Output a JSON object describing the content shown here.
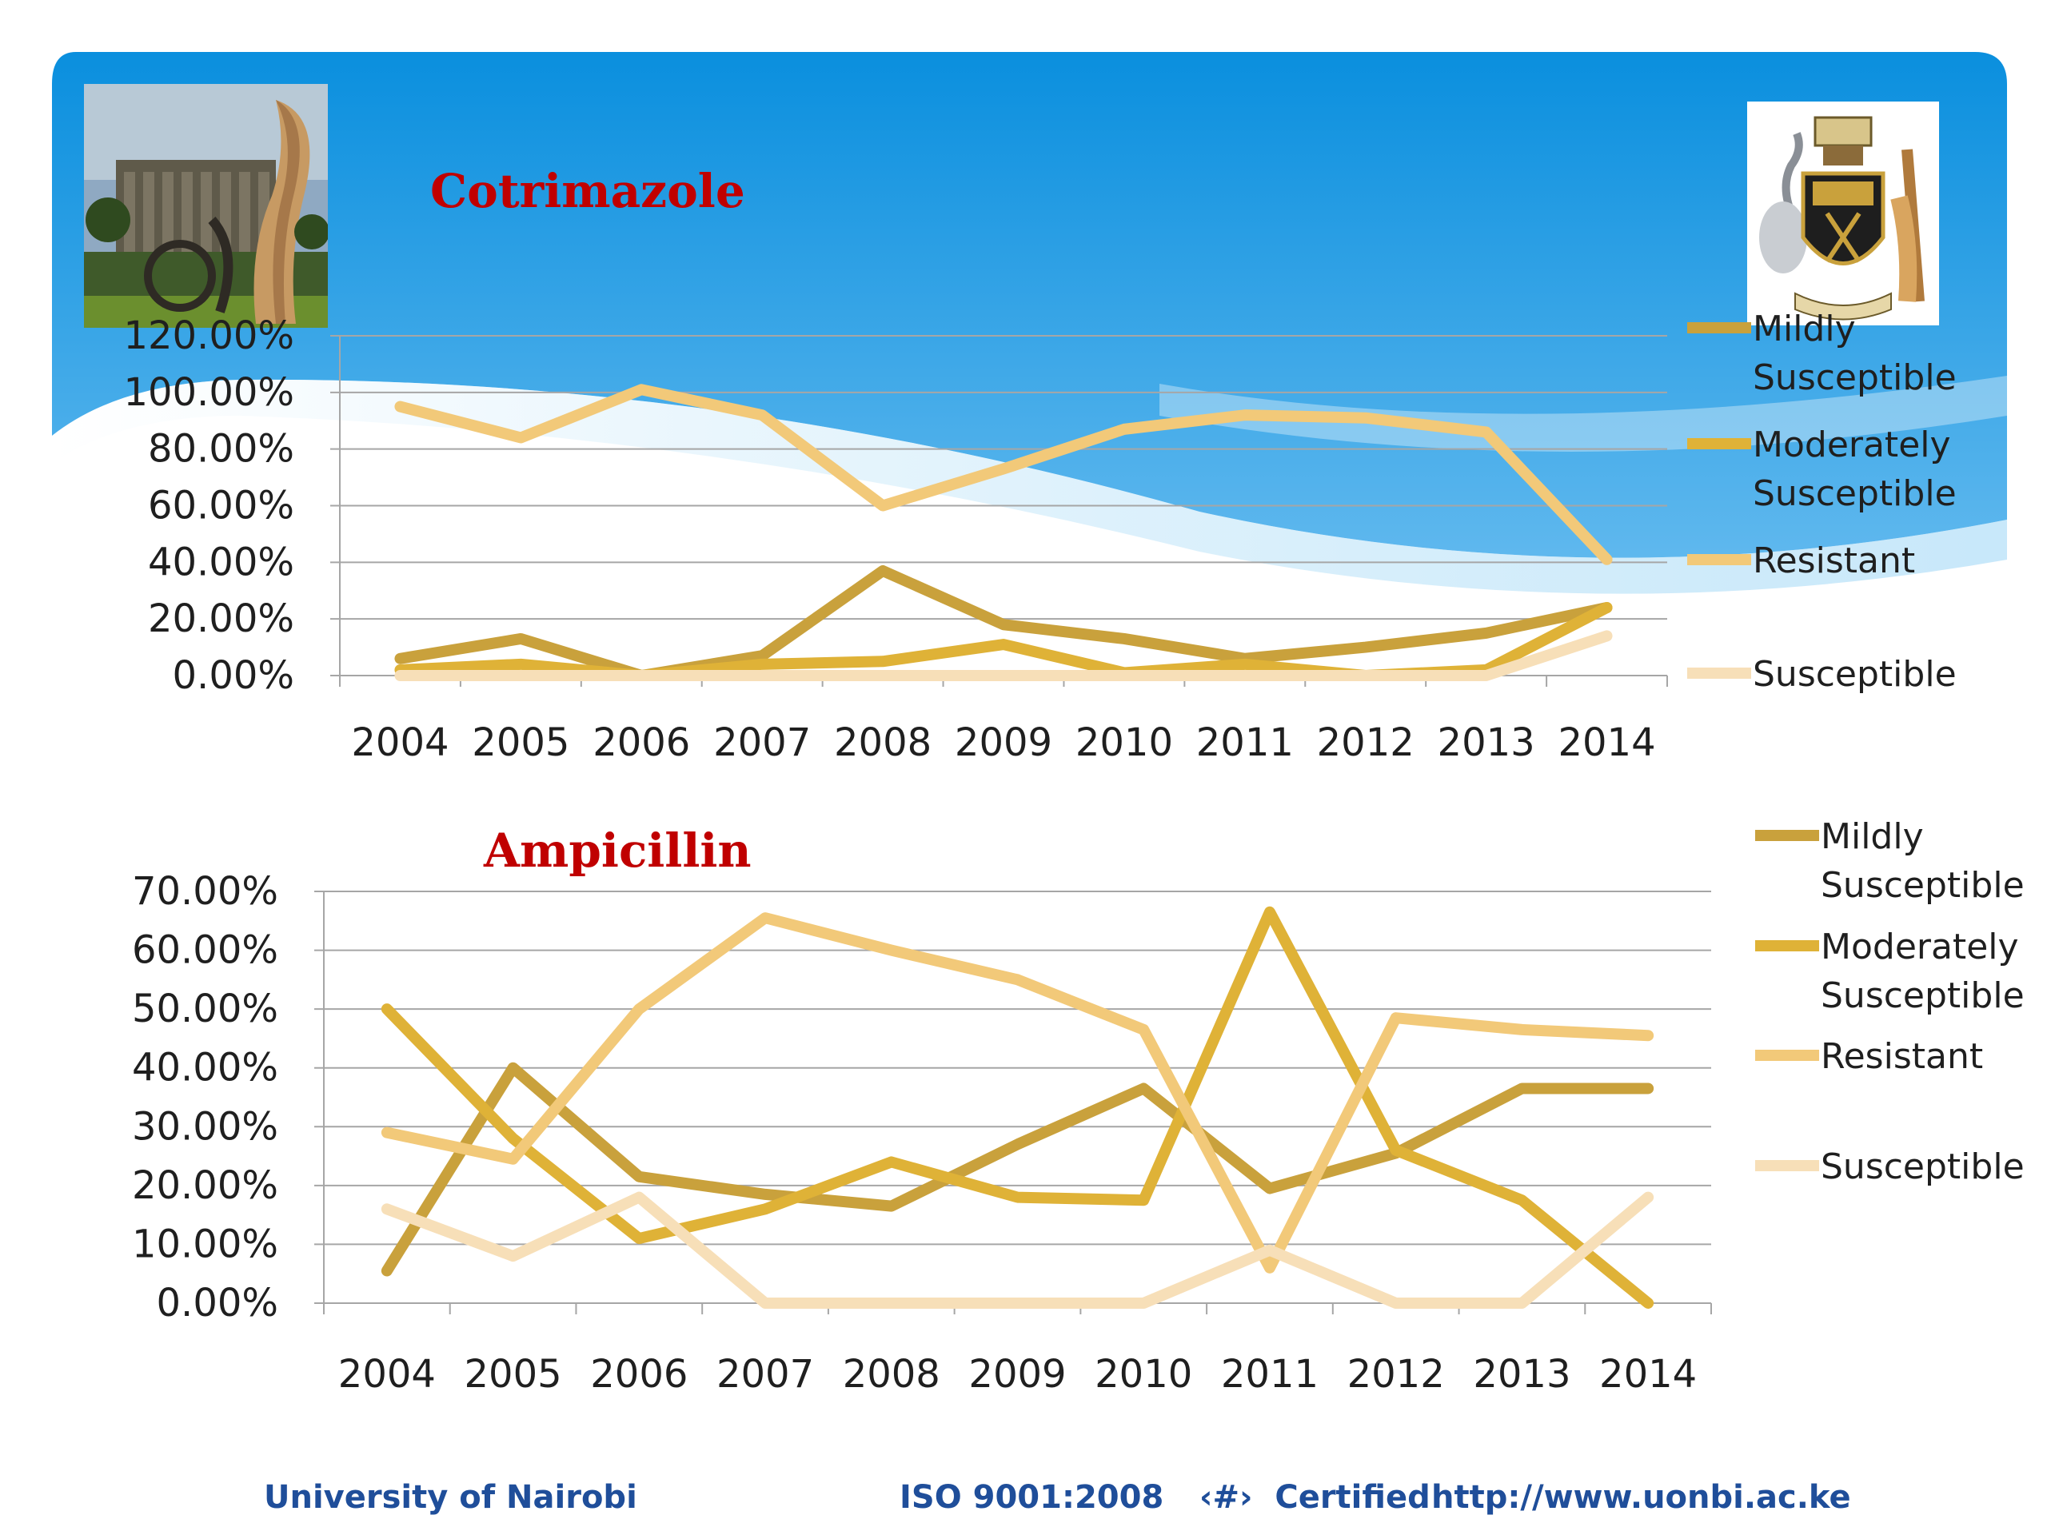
{
  "slide": {
    "footer": {
      "organization": "University of Nairobi",
      "iso": "ISO 9001:2008",
      "cert_mark": "‹#›",
      "certified": "Certified",
      "url": "http://www.uonbi.ac.ke"
    }
  },
  "colors": {
    "banner_top": "#0a8fde",
    "banner_bottom": "#8fd0f4",
    "title": "#c00000",
    "footer_text": "#1f4e9a",
    "mildly_susceptible": "#c9a13c",
    "moderately_susceptible": "#dfb237",
    "resistant": "#f2c979",
    "susceptible": "#f7dfb8",
    "gridline": "#a6a6a6"
  },
  "icons": [
    "campus-photo",
    "university-crest-icon"
  ],
  "chart_data": [
    {
      "type": "line",
      "title": "Cotrimazole",
      "categories": [
        "2004",
        "2005",
        "2006",
        "2007",
        "2008",
        "2009",
        "2010",
        "2011",
        "2012",
        "2013",
        "2014"
      ],
      "y_tick_labels": [
        "0.00%",
        "20.00%",
        "40.00%",
        "60.00%",
        "80.00%",
        "100.00%",
        "120.00%"
      ],
      "ylim": [
        0,
        120
      ],
      "y_unit": "%",
      "grid": true,
      "legend_position": "right",
      "series": [
        {
          "name": "Mildly Susceptible",
          "color": "#c9a13c",
          "values": [
            6,
            13,
            0,
            7,
            37,
            18,
            13,
            6,
            10,
            15,
            24
          ]
        },
        {
          "name": "Moderately Susceptible",
          "color": "#dfb237",
          "values": [
            2,
            4,
            0,
            4,
            5,
            11,
            1,
            4,
            0,
            2,
            24
          ]
        },
        {
          "name": "Resistant",
          "color": "#f2c979",
          "values": [
            95,
            84,
            101,
            92,
            60,
            73,
            87,
            92,
            91,
            86,
            41
          ]
        },
        {
          "name": "Susceptible",
          "color": "#f7dfb8",
          "values": [
            0,
            0,
            0,
            0,
            0,
            0,
            0,
            0,
            0,
            0,
            14
          ]
        }
      ]
    },
    {
      "type": "line",
      "title": "Ampicillin",
      "categories": [
        "2004",
        "2005",
        "2006",
        "2007",
        "2008",
        "2009",
        "2010",
        "2011",
        "2012",
        "2013",
        "2014"
      ],
      "y_tick_labels": [
        "0.00%",
        "10.00%",
        "20.00%",
        "30.00%",
        "40.00%",
        "50.00%",
        "60.00%",
        "70.00%"
      ],
      "ylim": [
        0,
        70
      ],
      "y_unit": "%",
      "grid": true,
      "legend_position": "right",
      "series": [
        {
          "name": "Mildly Susceptible",
          "color": "#c9a13c",
          "values": [
            5.5,
            40,
            21.5,
            18.5,
            16.5,
            27,
            36.5,
            19.5,
            25.5,
            36.5,
            36.5
          ]
        },
        {
          "name": "Moderately Susceptible",
          "color": "#dfb237",
          "values": [
            50,
            28,
            11,
            16,
            24,
            18,
            17.5,
            66.5,
            26,
            17.5,
            0
          ]
        },
        {
          "name": "Resistant",
          "color": "#f2c979",
          "values": [
            29,
            24.5,
            50,
            65.5,
            60,
            55,
            46.5,
            6,
            48.5,
            46.5,
            45.5
          ]
        },
        {
          "name": "Susceptible",
          "color": "#f7dfb8",
          "values": [
            16,
            8,
            18,
            0,
            0,
            0,
            0,
            9,
            0,
            0,
            18
          ]
        }
      ]
    }
  ]
}
